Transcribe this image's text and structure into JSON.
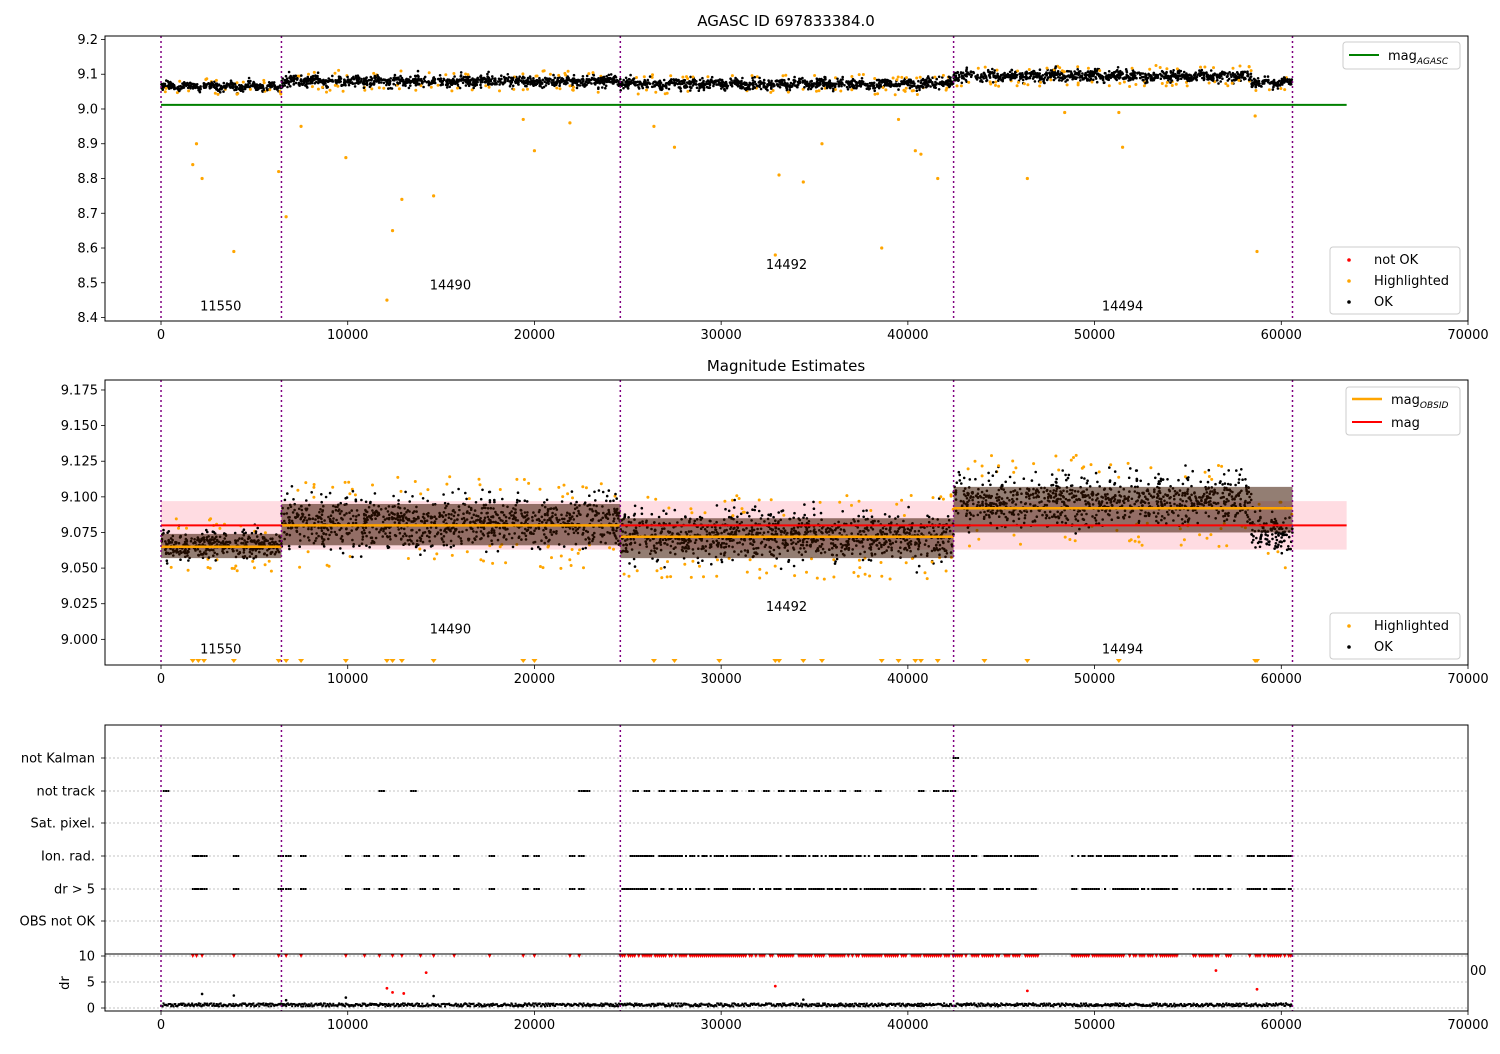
{
  "colors": {
    "ok": "#000000",
    "highlighted": "#ffa500",
    "not_ok": "#ff0000",
    "mag_agasc": "#008000",
    "mag_obsid": "#ffa500",
    "mag": "#ff0000",
    "mag_band": "#ffc0cb",
    "obs_boundary": "#800080"
  },
  "chart_data": [
    {
      "type": "scatter",
      "title": "AGASC ID 697833384.0",
      "xlim": [
        -3000,
        70000
      ],
      "ylim": [
        8.39,
        9.21
      ],
      "xticks": [
        "0",
        "10000",
        "20000",
        "30000",
        "40000",
        "50000",
        "60000",
        "70000"
      ],
      "yticks": [
        "8.4",
        "8.5",
        "8.6",
        "8.7",
        "8.8",
        "8.9",
        "9.0",
        "9.1",
        "9.2"
      ],
      "obs_boundaries": [
        0,
        6450,
        24600,
        42450,
        60600
      ],
      "obsids": [
        {
          "label": "11550",
          "x": 3200,
          "y": 8.42
        },
        {
          "label": "14490",
          "x": 15500,
          "y": 8.48
        },
        {
          "label": "14492",
          "x": 33500,
          "y": 8.54
        },
        {
          "label": "14494",
          "x": 51500,
          "y": 8.42
        }
      ],
      "segments": [
        {
          "x0": 0,
          "x1": 6450,
          "level": 9.065,
          "spread": 0.012
        },
        {
          "x0": 6450,
          "x1": 24600,
          "level": 9.08,
          "spread": 0.017
        },
        {
          "x0": 24600,
          "x1": 42450,
          "level": 9.072,
          "spread": 0.016
        },
        {
          "x0": 42450,
          "x1": 58400,
          "level": 9.095,
          "spread": 0.017
        },
        {
          "x0": 58400,
          "x1": 60600,
          "level": 9.075,
          "spread": 0.014
        }
      ],
      "mag_agasc": 9.012,
      "highlighted_outliers": [
        [
          1700,
          8.84
        ],
        [
          1900,
          8.9
        ],
        [
          2200,
          8.8
        ],
        [
          3900,
          8.59
        ],
        [
          6300,
          8.82
        ],
        [
          6700,
          8.69
        ],
        [
          7500,
          8.95
        ],
        [
          9900,
          8.86
        ],
        [
          12100,
          8.45
        ],
        [
          12400,
          8.65
        ],
        [
          12900,
          8.74
        ],
        [
          14600,
          8.75
        ],
        [
          19400,
          8.97
        ],
        [
          20000,
          8.88
        ],
        [
          21900,
          8.96
        ],
        [
          26400,
          8.95
        ],
        [
          27500,
          8.89
        ],
        [
          32900,
          8.58
        ],
        [
          33100,
          8.81
        ],
        [
          34400,
          8.79
        ],
        [
          35400,
          8.9
        ],
        [
          38600,
          8.6
        ],
        [
          39500,
          8.97
        ],
        [
          40400,
          8.88
        ],
        [
          40700,
          8.87
        ],
        [
          41600,
          8.8
        ],
        [
          46400,
          8.8
        ],
        [
          48400,
          8.99
        ],
        [
          51300,
          8.99
        ],
        [
          51500,
          8.89
        ],
        [
          58700,
          8.59
        ],
        [
          58600,
          8.98
        ]
      ],
      "legend_top": [
        {
          "label": "mag",
          "sub": "AGASC"
        }
      ],
      "legend_bottom": [
        "not OK",
        "Highlighted",
        "OK"
      ]
    },
    {
      "type": "scatter",
      "title": "Magnitude Estimates",
      "xlim": [
        -3000,
        70000
      ],
      "ylim": [
        8.982,
        9.182
      ],
      "xticks": [
        "0",
        "10000",
        "20000",
        "30000",
        "40000",
        "50000",
        "60000",
        "70000"
      ],
      "yticks": [
        "9.000",
        "9.025",
        "9.050",
        "9.075",
        "9.100",
        "9.125",
        "9.150",
        "9.175"
      ],
      "obs_boundaries": [
        0,
        6450,
        24600,
        42450,
        60600
      ],
      "obsids": [
        {
          "label": "11550",
          "x": 3200,
          "y": 8.99
        },
        {
          "label": "14490",
          "x": 15500,
          "y": 9.004
        },
        {
          "label": "14492",
          "x": 33500,
          "y": 9.02
        },
        {
          "label": "14494",
          "x": 51500,
          "y": 8.99
        }
      ],
      "mag": 9.08,
      "mag_band": [
        9.063,
        9.097
      ],
      "mag_obsid": [
        {
          "x0": 0,
          "x1": 6450,
          "value": 9.065,
          "band": [
            9.057,
            9.074
          ]
        },
        {
          "x0": 6450,
          "x1": 24600,
          "value": 9.08,
          "band": [
            9.066,
            9.095
          ]
        },
        {
          "x0": 24600,
          "x1": 42450,
          "value": 9.072,
          "band": [
            9.057,
            9.085
          ]
        },
        {
          "x0": 42450,
          "x1": 60600,
          "value": 9.092,
          "band": [
            9.075,
            9.107
          ]
        }
      ],
      "segments": [
        {
          "x0": 0,
          "x1": 6450,
          "level": 9.066,
          "spread": 0.011
        },
        {
          "x0": 6450,
          "x1": 24600,
          "level": 9.082,
          "spread": 0.019
        },
        {
          "x0": 24600,
          "x1": 42450,
          "level": 9.072,
          "spread": 0.018
        },
        {
          "x0": 42450,
          "x1": 58400,
          "level": 9.097,
          "spread": 0.019
        },
        {
          "x0": 58400,
          "x1": 60600,
          "level": 9.074,
          "spread": 0.014
        }
      ],
      "clipped_low_x": [
        1700,
        2000,
        2300,
        3900,
        6300,
        6700,
        7500,
        9900,
        12100,
        12400,
        12900,
        14600,
        19400,
        20000,
        26400,
        27500,
        29900,
        32900,
        33100,
        34400,
        35400,
        38600,
        39500,
        40400,
        40700,
        41600,
        44100,
        46400,
        51300,
        58600,
        58700
      ],
      "legend_top": [
        {
          "label": "mag",
          "sub": "OBSID"
        },
        {
          "label": "mag",
          "sub": ""
        }
      ],
      "legend_bottom": [
        "Highlighted",
        "OK"
      ]
    },
    {
      "type": "scatter",
      "title": "",
      "xlim": [
        -3000,
        70000
      ],
      "ylabel": "dr",
      "flag_labels": [
        "not Kalman",
        "not track",
        "Sat. pixel.",
        "Ion. rad.",
        "dr > 5",
        "OBS not OK"
      ],
      "dr_yticks": [
        "0",
        "5",
        "10"
      ],
      "xticks": [
        "0",
        "10000",
        "20000",
        "30000",
        "40000",
        "50000",
        "60000",
        "70000"
      ],
      "stray_tick_label": "00",
      "obs_boundaries": [
        0,
        6450,
        24600,
        42450,
        60600
      ],
      "flag_points": {
        "not Kalman": [
          42450
        ],
        "not track": [
          150,
          11700,
          13400,
          22400,
          22700,
          25300,
          25900,
          26700,
          27300,
          27900,
          28500,
          29100,
          29800,
          30600,
          31500,
          32300,
          33100,
          33700,
          34300,
          35000,
          35600,
          36400,
          37200,
          38300,
          40600,
          41400,
          41900,
          42300
        ],
        "Sat. pixel.": [],
        "Ion. rad.": [
          1700,
          1900,
          2200,
          3900,
          6300,
          6700,
          7500,
          9900,
          10900,
          11700,
          12400,
          12900,
          13900,
          14600,
          15700,
          17600,
          19400,
          20000,
          21900,
          22400
        ],
        "dr > 5": [
          1700,
          1900,
          2200,
          3900,
          6300,
          6700,
          7500,
          9900,
          10900,
          11700,
          12400,
          12900,
          13900,
          14600,
          15700,
          17600,
          19400,
          20000,
          21900,
          22400
        ],
        "OBS not OK": []
      },
      "dense_flag_ranges": [
        [
          24600,
          42450
        ],
        [
          42450,
          47000
        ],
        [
          48800,
          54500
        ],
        [
          55300,
          57300
        ],
        [
          58200,
          60600
        ]
      ],
      "dr_red_y": 10,
      "dr_outliers": [
        [
          12100,
          3.8
        ],
        [
          12400,
          3.0
        ],
        [
          13000,
          2.8
        ],
        [
          14200,
          6.8
        ],
        [
          32900,
          4.2
        ],
        [
          46400,
          3.3
        ],
        [
          56500,
          7.2
        ],
        [
          58700,
          3.6
        ]
      ],
      "dr_black_outliers": [
        [
          2200,
          2.7
        ],
        [
          3900,
          2.4
        ],
        [
          9900,
          2.0
        ],
        [
          14600,
          2.3
        ],
        [
          34400,
          1.6
        ],
        [
          6700,
          1.5
        ]
      ]
    }
  ]
}
